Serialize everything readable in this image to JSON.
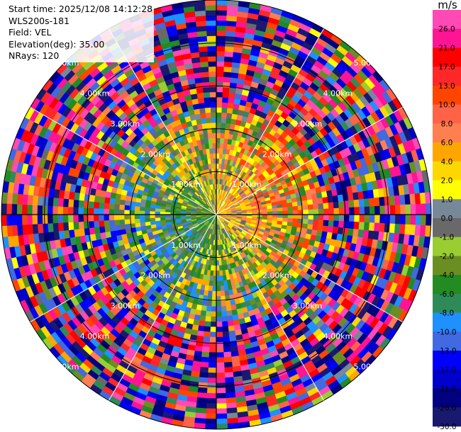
{
  "header": {
    "start_time": "Start time: 2025/12/08 14:12:28",
    "instrument": "WLS200s-181",
    "field": "Field: VEL",
    "elevation": "Elevation(deg): 35.00",
    "nrays": "NRays: 120"
  },
  "chart_data": {
    "type": "heatmap",
    "projection": "polar-ppi",
    "field": "VEL",
    "units": "m/s",
    "nrays": 120,
    "elevation_deg": 35.0,
    "max_range_km": 5.0,
    "range_rings_km": [
      1,
      2,
      3,
      4,
      5
    ],
    "range_ring_labels": [
      "1.00km",
      "2.00km",
      "3.00km",
      "4.00km",
      "5.00km"
    ],
    "colorbar": {
      "title": "m/s",
      "tick_labels": [
        "26.0",
        "21.0",
        "17.0",
        "13.0",
        "10.0",
        "8.0",
        "6.0",
        "4.0",
        "2.0",
        "1.0",
        "0.0",
        "-1.0",
        "-2.0",
        "-4.0",
        "-6.0",
        "-8.0",
        "-10.0",
        "-13.0",
        "-17.0",
        "-21.0",
        "-26.0",
        "-30.0"
      ],
      "bins": [
        {
          "from": 26,
          "to": 30,
          "color": "#ff49b4"
        },
        {
          "from": 21,
          "to": 26,
          "color": "#ff1493"
        },
        {
          "from": 17,
          "to": 21,
          "color": "#ff0000"
        },
        {
          "from": 13,
          "to": 17,
          "color": "#ff2727"
        },
        {
          "from": 10,
          "to": 13,
          "color": "#ff4500"
        },
        {
          "from": 8,
          "to": 10,
          "color": "#ff6347"
        },
        {
          "from": 6,
          "to": 8,
          "color": "#ff7f50"
        },
        {
          "from": 4,
          "to": 6,
          "color": "#ffa500"
        },
        {
          "from": 2,
          "to": 4,
          "color": "#ffd700"
        },
        {
          "from": 1,
          "to": 2,
          "color": "#ffff00"
        },
        {
          "from": 0,
          "to": 1,
          "color": "#778899"
        },
        {
          "from": -1,
          "to": 0,
          "color": "#696969"
        },
        {
          "from": -2,
          "to": -1,
          "color": "#9acd32"
        },
        {
          "from": -4,
          "to": -2,
          "color": "#6b8e23"
        },
        {
          "from": -6,
          "to": -4,
          "color": "#228b22"
        },
        {
          "from": -8,
          "to": -6,
          "color": "#2e8b57"
        },
        {
          "from": -10,
          "to": -8,
          "color": "#1e90ff"
        },
        {
          "from": -13,
          "to": -10,
          "color": "#4169e1"
        },
        {
          "from": -17,
          "to": -13,
          "color": "#0000ff"
        },
        {
          "from": -21,
          "to": -17,
          "color": "#0000cd"
        },
        {
          "from": -26,
          "to": -21,
          "color": "#000080"
        },
        {
          "from": -30,
          "to": -26,
          "color": "#191970"
        }
      ]
    }
  }
}
